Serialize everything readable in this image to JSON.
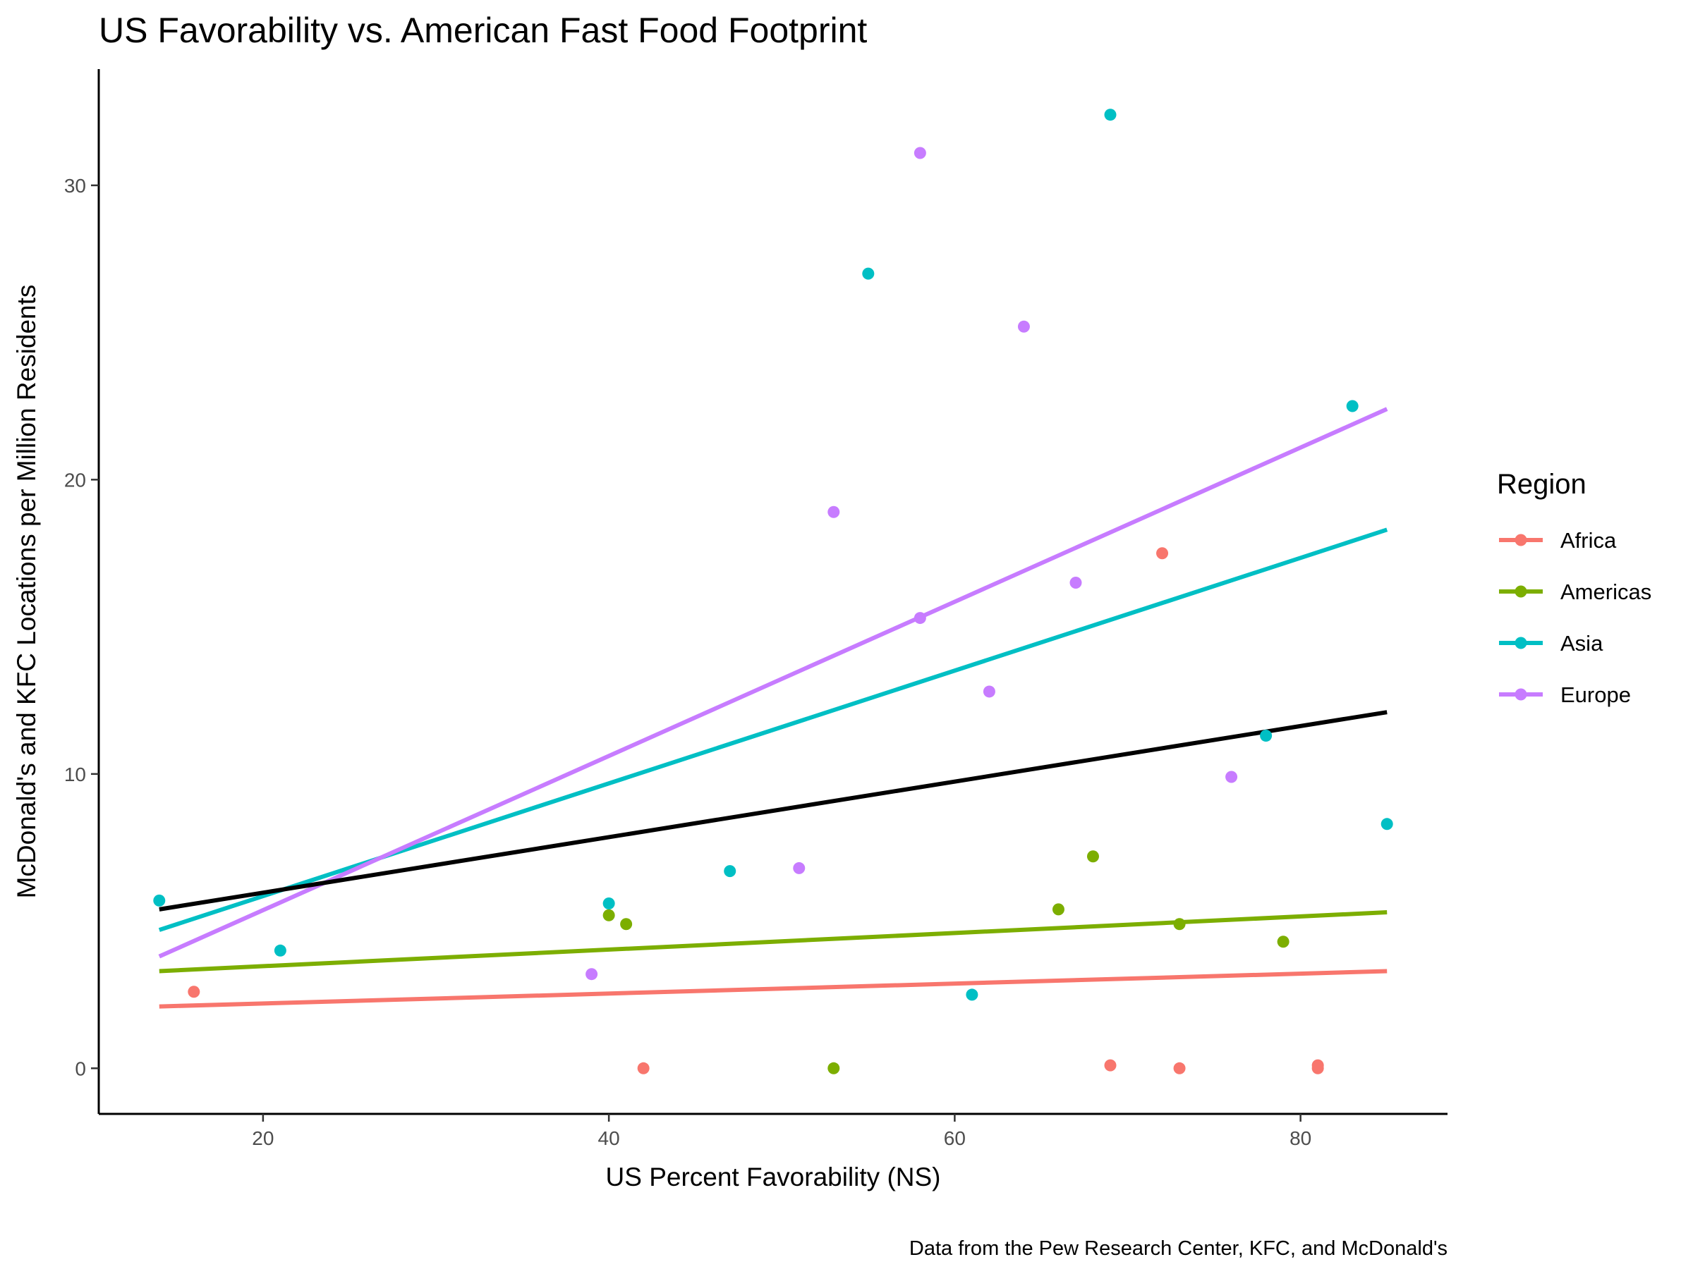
{
  "chart_data": {
    "type": "scatter",
    "title": "US Favorability vs. American Fast Food Footprint",
    "xlabel": "US Percent Favorability (NS)",
    "ylabel": "McDonald's and KFC Locations per Million Residents",
    "caption": "Data from the Pew Research Center, KFC, and McDonald's",
    "xlim": [
      10.5,
      88.5
    ],
    "ylim": [
      -1.55,
      33.95
    ],
    "x_ticks": [
      20,
      40,
      60,
      80
    ],
    "y_ticks": [
      0,
      10,
      20,
      30
    ],
    "grid": false,
    "legend": {
      "title": "Region",
      "position": "right"
    },
    "series": [
      {
        "name": "Africa",
        "color": "#F8766D",
        "points": [
          [
            16,
            2.6
          ],
          [
            42,
            0.0
          ],
          [
            69,
            0.1
          ],
          [
            72,
            17.5
          ],
          [
            73,
            0.0
          ],
          [
            81,
            0.0
          ],
          [
            81,
            0.1
          ]
        ],
        "trend": {
          "x": [
            14,
            85
          ],
          "y": [
            2.1,
            3.3
          ]
        }
      },
      {
        "name": "Americas",
        "color": "#7CAE00",
        "points": [
          [
            40,
            5.2
          ],
          [
            41,
            4.9
          ],
          [
            53,
            0.0
          ],
          [
            66,
            5.4
          ],
          [
            68,
            7.2
          ],
          [
            73,
            4.9
          ],
          [
            79,
            4.3
          ]
        ],
        "trend": {
          "x": [
            14,
            85
          ],
          "y": [
            3.3,
            5.3
          ]
        }
      },
      {
        "name": "Asia",
        "color": "#00BFC4",
        "points": [
          [
            14,
            5.7
          ],
          [
            21,
            4.0
          ],
          [
            40,
            5.6
          ],
          [
            47,
            6.7
          ],
          [
            55,
            27.0
          ],
          [
            61,
            2.5
          ],
          [
            69,
            32.4
          ],
          [
            78,
            11.3
          ],
          [
            83,
            22.5
          ],
          [
            85,
            8.3
          ]
        ],
        "trend": {
          "x": [
            14,
            85
          ],
          "y": [
            4.7,
            18.3
          ]
        }
      },
      {
        "name": "Europe",
        "color": "#C77CFF",
        "points": [
          [
            39,
            3.2
          ],
          [
            51,
            6.8
          ],
          [
            53,
            18.9
          ],
          [
            58,
            31.1
          ],
          [
            58,
            15.3
          ],
          [
            62,
            12.8
          ],
          [
            64,
            25.2
          ],
          [
            67,
            16.5
          ],
          [
            76,
            9.9
          ]
        ],
        "trend": {
          "x": [
            14,
            85
          ],
          "y": [
            3.8,
            22.4
          ]
        }
      }
    ],
    "overall_trend": {
      "color": "#000000",
      "x": [
        14,
        85
      ],
      "y": [
        5.4,
        12.1
      ]
    }
  }
}
